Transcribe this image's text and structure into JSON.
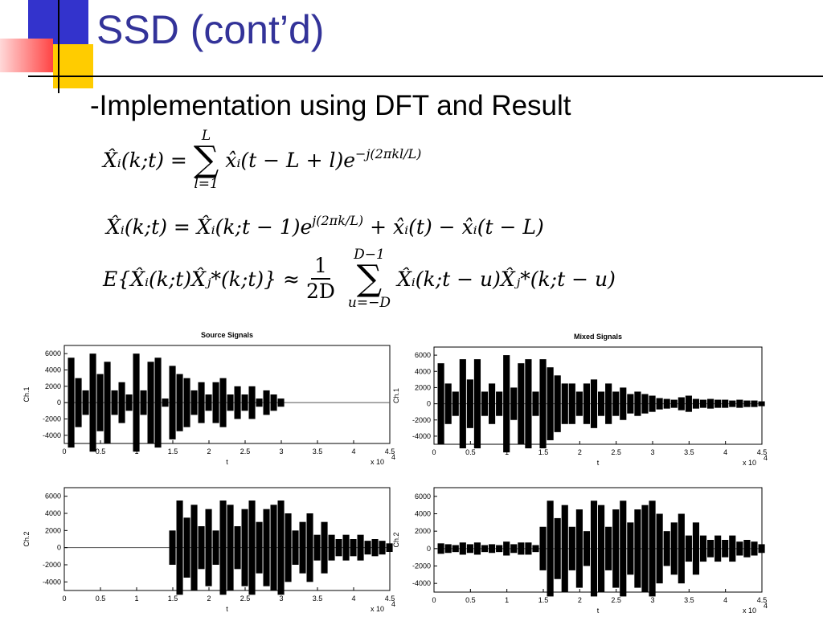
{
  "slide": {
    "title": "SSD (cont’d)",
    "subtitle": "-Implementation using DFT and Result"
  },
  "equations": [
    {
      "lhs": "X̂ᵢ(k;t) =",
      "sum_top": "L",
      "sum_bottom": "l=1",
      "body": "x̂ᵢ(t − L + l)e",
      "exp": "−j(2πkl/L)"
    },
    {
      "lhs": "X̂ᵢ(k;t) = X̂ᵢ(k;t − 1)e",
      "exp": "j(2πk/L)",
      "body": "+ x̂ᵢ(t) − x̂ᵢ(t − L)"
    },
    {
      "lhs": "E{X̂ᵢ(k;t)X̂ⱼ*(k;t)} ≈",
      "numerator": "1",
      "denominator": "2D",
      "sum_top": "D−1",
      "sum_bottom": "u=−D",
      "body": "X̂ᵢ(k;t − u)X̂ⱼ*(k;t − u)"
    }
  ],
  "chart_data": [
    {
      "type": "waveform",
      "title": "Source Signals",
      "y_label": "Ch.1",
      "x_label": "t",
      "x_multiplier": "x 10",
      "x_multiplier_exp": "4",
      "color": "#000000",
      "x": [
        0,
        0.1,
        0.2,
        0.3,
        0.4,
        0.5,
        0.6,
        0.7,
        0.8,
        0.9,
        1,
        1.1,
        1.2,
        1.3,
        1.4,
        1.5,
        1.6,
        1.7,
        1.8,
        1.9,
        2,
        2.1,
        2.2,
        2.3,
        2.4,
        2.5,
        2.6,
        2.7,
        2.8,
        2.9,
        3,
        3.1,
        3.2,
        3.3,
        3.4,
        3.5,
        3.6,
        3.7,
        3.8,
        3.9,
        4,
        4.1,
        4.2,
        4.3,
        4.4,
        4.5
      ],
      "values": [
        0,
        5500,
        3000,
        1500,
        6000,
        3500,
        5000,
        1500,
        2500,
        1000,
        6000,
        1500,
        5000,
        5500,
        500,
        4500,
        3500,
        3000,
        1500,
        2500,
        1000,
        2500,
        3000,
        1000,
        2000,
        1000,
        2000,
        500,
        1500,
        1000,
        500,
        0,
        0,
        0,
        0,
        0,
        0,
        0,
        0,
        0,
        0,
        0,
        0,
        0,
        0,
        0
      ],
      "xlim": [
        0,
        4.5
      ],
      "xticks": [
        0,
        0.5,
        1,
        1.5,
        2,
        2.5,
        3,
        3.5,
        4,
        4.5
      ],
      "ylim": [
        -5000,
        7000
      ],
      "yticks": [
        6000,
        4000,
        2000,
        0,
        -2000,
        -4000
      ]
    },
    {
      "type": "waveform",
      "title": "Mixed Signals",
      "y_label": "Ch.1",
      "x_label": "t",
      "x_multiplier": "x 10",
      "x_multiplier_exp": "4",
      "color": "#000000",
      "x": [
        0,
        0.1,
        0.2,
        0.3,
        0.4,
        0.5,
        0.6,
        0.7,
        0.8,
        0.9,
        1,
        1.1,
        1.2,
        1.3,
        1.4,
        1.5,
        1.6,
        1.7,
        1.8,
        1.9,
        2,
        2.1,
        2.2,
        2.3,
        2.4,
        2.5,
        2.6,
        2.7,
        2.8,
        2.9,
        3,
        3.1,
        3.2,
        3.3,
        3.4,
        3.5,
        3.6,
        3.7,
        3.8,
        3.9,
        4,
        4.1,
        4.2,
        4.3,
        4.4,
        4.5
      ],
      "values": [
        0,
        5000,
        2500,
        1500,
        5500,
        3000,
        5500,
        1500,
        2500,
        1500,
        6000,
        2000,
        5000,
        5500,
        1500,
        5500,
        4500,
        3500,
        2500,
        2500,
        1500,
        2500,
        3000,
        1500,
        2500,
        1500,
        2000,
        1200,
        1500,
        1200,
        1000,
        700,
        600,
        500,
        800,
        1000,
        600,
        500,
        600,
        500,
        500,
        400,
        500,
        400,
        400,
        300
      ],
      "xlim": [
        0,
        4.5
      ],
      "xticks": [
        0,
        0.5,
        1,
        1.5,
        2,
        2.5,
        3,
        3.5,
        4,
        4.5
      ],
      "ylim": [
        -5000,
        7000
      ],
      "yticks": [
        6000,
        4000,
        2000,
        0,
        -2000,
        -4000
      ]
    },
    {
      "type": "waveform",
      "y_label": "Ch.2",
      "x_label": "t",
      "x_multiplier": "x 10",
      "x_multiplier_exp": "4",
      "color": "#000000",
      "x": [
        0,
        0.1,
        0.2,
        0.3,
        0.4,
        0.5,
        0.6,
        0.7,
        0.8,
        0.9,
        1,
        1.1,
        1.2,
        1.3,
        1.4,
        1.5,
        1.6,
        1.7,
        1.8,
        1.9,
        2,
        2.1,
        2.2,
        2.3,
        2.4,
        2.5,
        2.6,
        2.7,
        2.8,
        2.9,
        3,
        3.1,
        3.2,
        3.3,
        3.4,
        3.5,
        3.6,
        3.7,
        3.8,
        3.9,
        4,
        4.1,
        4.2,
        4.3,
        4.4,
        4.5
      ],
      "values": [
        0,
        0,
        0,
        0,
        0,
        0,
        0,
        0,
        0,
        0,
        0,
        0,
        0,
        0,
        0,
        2000,
        5500,
        3500,
        5000,
        2500,
        4500,
        2000,
        5500,
        5000,
        2500,
        4500,
        5500,
        3000,
        4500,
        5000,
        5500,
        4000,
        2000,
        3000,
        4000,
        1500,
        3000,
        1500,
        1000,
        1500,
        1000,
        1500,
        800,
        1000,
        800,
        500
      ],
      "xlim": [
        0,
        4.5
      ],
      "xticks": [
        0,
        0.5,
        1,
        1.5,
        2,
        2.5,
        3,
        3.5,
        4,
        4.5
      ],
      "ylim": [
        -5000,
        7000
      ],
      "yticks": [
        6000,
        4000,
        2000,
        0,
        -2000,
        -4000
      ]
    },
    {
      "type": "waveform",
      "y_label": "Ch.2",
      "x_label": "t",
      "x_multiplier": "x 10",
      "x_multiplier_exp": "4",
      "color": "#000000",
      "x": [
        0,
        0.1,
        0.2,
        0.3,
        0.4,
        0.5,
        0.6,
        0.7,
        0.8,
        0.9,
        1,
        1.1,
        1.2,
        1.3,
        1.4,
        1.5,
        1.6,
        1.7,
        1.8,
        1.9,
        2,
        2.1,
        2.2,
        2.3,
        2.4,
        2.5,
        2.6,
        2.7,
        2.8,
        2.9,
        3,
        3.1,
        3.2,
        3.3,
        3.4,
        3.5,
        3.6,
        3.7,
        3.8,
        3.9,
        4,
        4.1,
        4.2,
        4.3,
        4.4,
        4.5
      ],
      "values": [
        0,
        600,
        500,
        400,
        700,
        500,
        700,
        400,
        500,
        400,
        800,
        500,
        700,
        700,
        400,
        2500,
        5500,
        3500,
        5000,
        2500,
        4500,
        2000,
        5500,
        5000,
        2500,
        4500,
        5500,
        3000,
        4500,
        5000,
        5500,
        4000,
        2000,
        3000,
        4000,
        1500,
        3000,
        1500,
        1000,
        1500,
        1000,
        1500,
        800,
        1000,
        800,
        500
      ],
      "xlim": [
        0,
        4.5
      ],
      "xticks": [
        0,
        0.5,
        1,
        1.5,
        2,
        2.5,
        3,
        3.5,
        4,
        4.5
      ],
      "ylim": [
        -5000,
        7000
      ],
      "yticks": [
        6000,
        4000,
        2000,
        0,
        -2000,
        -4000
      ]
    }
  ]
}
